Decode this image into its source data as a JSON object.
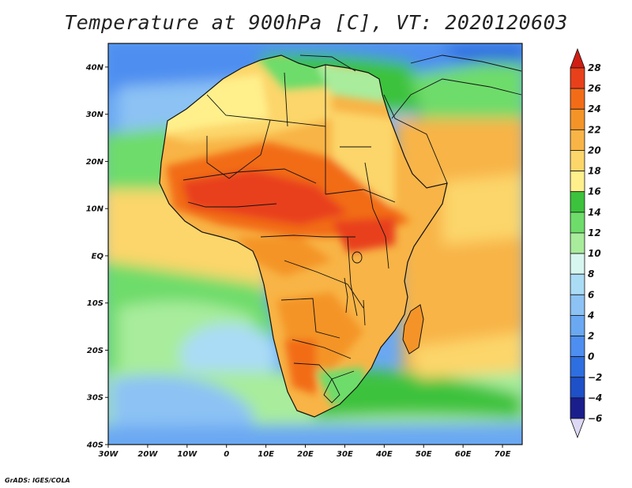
{
  "title": "Temperature at 900hPa [C], VT: 2020120603",
  "credit": "GrADS: IGES/COLA",
  "map": {
    "lon_range": [
      -30,
      75
    ],
    "lat_range": [
      -40,
      45
    ],
    "lon_ticks": [
      {
        "v": -30,
        "label": "30W"
      },
      {
        "v": -20,
        "label": "20W"
      },
      {
        "v": -10,
        "label": "10W"
      },
      {
        "v": 0,
        "label": "0"
      },
      {
        "v": 10,
        "label": "10E"
      },
      {
        "v": 20,
        "label": "20E"
      },
      {
        "v": 30,
        "label": "30E"
      },
      {
        "v": 40,
        "label": "40E"
      },
      {
        "v": 50,
        "label": "50E"
      },
      {
        "v": 60,
        "label": "60E"
      },
      {
        "v": 70,
        "label": "70E"
      }
    ],
    "lat_ticks": [
      {
        "v": 40,
        "label": "40N"
      },
      {
        "v": 30,
        "label": "30N"
      },
      {
        "v": 20,
        "label": "20N"
      },
      {
        "v": 10,
        "label": "10N"
      },
      {
        "v": 0,
        "label": "EQ"
      },
      {
        "v": -10,
        "label": "10S"
      },
      {
        "v": -20,
        "label": "20S"
      },
      {
        "v": -30,
        "label": "30S"
      },
      {
        "v": -40,
        "label": "40S"
      }
    ]
  },
  "colorbar": {
    "levels": [
      -6,
      -4,
      -2,
      0,
      2,
      4,
      6,
      8,
      10,
      12,
      14,
      16,
      18,
      20,
      22,
      24,
      26,
      28
    ],
    "colors": [
      "#1a1e8c",
      "#1e50c8",
      "#2d6ee0",
      "#4d8ef0",
      "#6aa8f2",
      "#8cc2f4",
      "#aadcf6",
      "#d8f6f0",
      "#a8ec9c",
      "#6edc6a",
      "#3cc23c",
      "#fff08c",
      "#fcd66a",
      "#f8b446",
      "#f49428",
      "#f26c18",
      "#e8401a",
      "#d01e14"
    ],
    "low_color": "#ddd8f4"
  }
}
